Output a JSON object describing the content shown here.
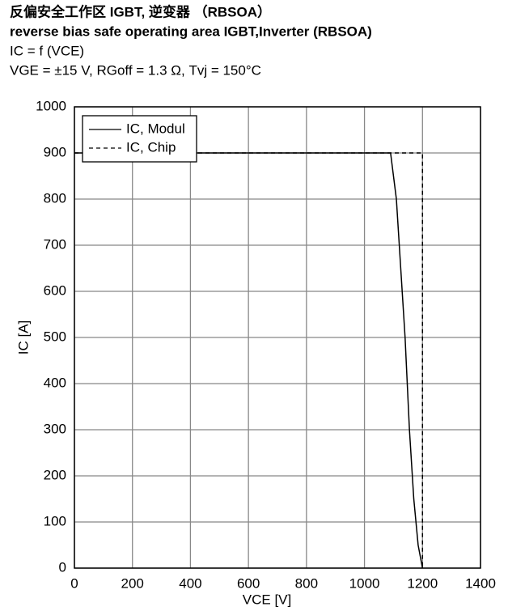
{
  "chart_data": {
    "type": "line",
    "title": "反偏安全工作区 IGBT, 逆变器 （RBSOA）",
    "subtitle": "reverse bias safe operating area IGBT,Inverter (RBSOA)",
    "annotations": [
      "IC = f (VCE)",
      "VGE = ±15 V, RGoff = 1.3 Ω, Tvj = 150°C"
    ],
    "x_label": "VCE [V]",
    "y_label": "IC [A]",
    "series": [
      {
        "name": "IC, Modul",
        "color": "#000000",
        "dash": "solid",
        "x": [
          0,
          1090,
          1110,
          1125,
          1140,
          1155,
          1170,
          1185,
          1200
        ],
        "values": [
          900,
          900,
          800,
          650,
          500,
          300,
          150,
          50,
          0
        ]
      },
      {
        "name": "IC, Chip",
        "color": "#000000",
        "dash": "dashed",
        "x": [
          0,
          1200,
          1200
        ],
        "values": [
          900,
          900,
          0
        ]
      }
    ],
    "xlim": [
      0,
      1400
    ],
    "xticks": [
      0,
      200,
      400,
      600,
      800,
      1000,
      1200,
      1400
    ],
    "ylim": [
      0,
      1000
    ],
    "yticks": [
      0,
      100,
      200,
      300,
      400,
      500,
      600,
      700,
      800,
      900,
      1000
    ],
    "grid": true,
    "legend": "upper left"
  }
}
